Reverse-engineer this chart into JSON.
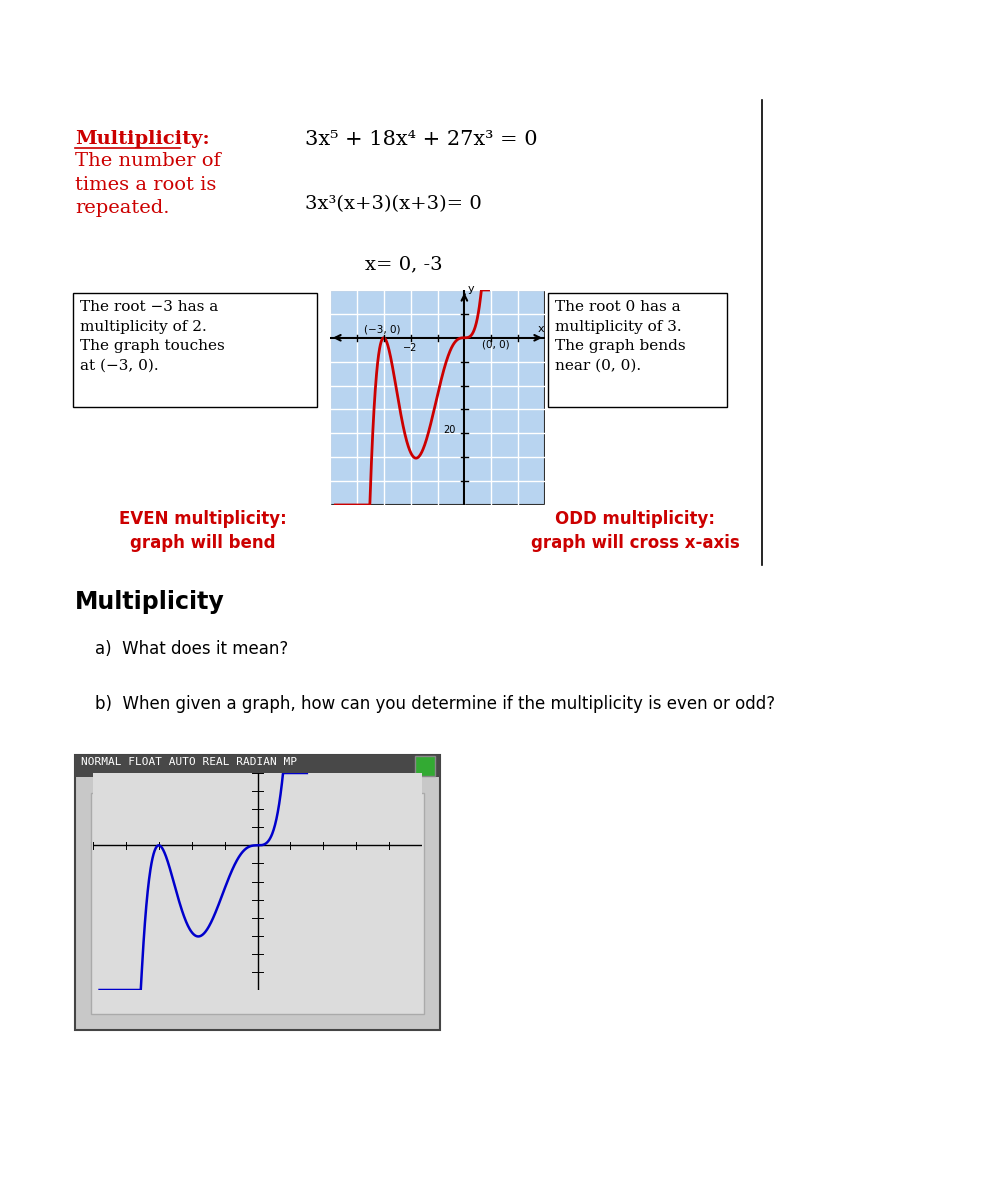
{
  "page_bg": "#ffffff",
  "title_equation": "3x⁵ + 18x⁴ + 27x³ = 0",
  "factored_equation": "3x³(x+3)(x+3)= 0",
  "solutions": "x= 0, -3",
  "multiplicity_label": "Multiplicity:",
  "multiplicity_desc": "The number of\ntimes a root is\nrepeated.",
  "left_box_text": "The root −3 has a\nmultiplicity of 2.\nThe graph touches\nat (−3, 0).",
  "right_box_text": "The root 0 has a\nmultiplicity of 3.\nThe graph bends\nnear (0, 0).",
  "even_text": "EVEN multiplicity:\ngraph will bend",
  "odd_text": "ODD multiplicity:\ngraph will cross x-axis",
  "section_title": "Multiplicity",
  "qa_a": "a)  What does it mean?",
  "qa_b": "b)  When given a graph, how can you determine if the multiplicity is even or odd?",
  "calc_header": "NORMAL FLOAT AUTO REAL RADIAN MP",
  "red_color": "#cc0000",
  "blue_color": "#0000cc",
  "graph_bg": "#b8d4f0",
  "calc_bg": "#c8c8c8",
  "calc_screen_bg": "#dcdcdc",
  "calc_header_bg": "#484848"
}
